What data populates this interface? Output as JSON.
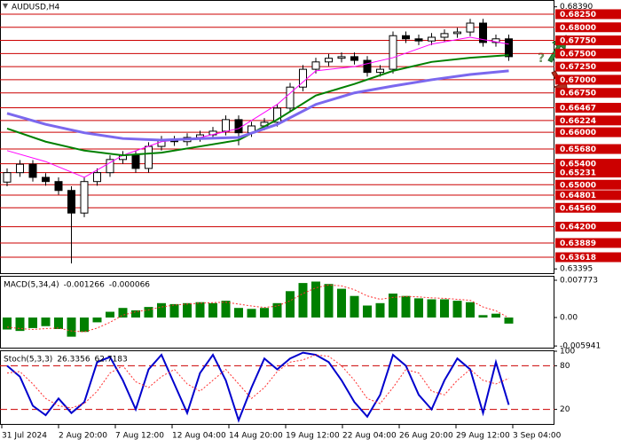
{
  "chart_data": [
    {
      "type": "candlestick",
      "title": "AUDUSD,H4",
      "forecast_symbol": "?",
      "ylim": [
        0.63314,
        0.6852
      ],
      "yticks": [
        {
          "value": 0.6839,
          "label": "0.68390"
        },
        {
          "value": 0.63395,
          "label": "0.63395"
        }
      ],
      "levels": [
        {
          "value": 0.6825,
          "label": "0.68250"
        },
        {
          "value": 0.68,
          "label": "0.68000"
        },
        {
          "value": 0.6775,
          "label": "0.67750"
        },
        {
          "value": 0.675,
          "label": "0.67500"
        },
        {
          "value": 0.6725,
          "label": "0.67250"
        },
        {
          "value": 0.67,
          "label": "0.67000"
        },
        {
          "value": 0.6675,
          "label": "0.66750"
        },
        {
          "value": 0.66467,
          "label": "0.66467"
        },
        {
          "value": 0.66224,
          "label": "0.66224"
        },
        {
          "value": 0.66,
          "label": "0.66000"
        },
        {
          "value": 0.6568,
          "label": "0.65680"
        },
        {
          "value": 0.654,
          "label": "0.65400"
        },
        {
          "value": 0.65231,
          "label": "0.65231"
        },
        {
          "value": 0.65,
          "label": "0.65000"
        },
        {
          "value": 0.64801,
          "label": "0.64801"
        },
        {
          "value": 0.6456,
          "label": "0.64560"
        },
        {
          "value": 0.642,
          "label": "0.64200"
        },
        {
          "value": 0.63889,
          "label": "0.63889"
        },
        {
          "value": 0.63618,
          "label": "0.63618"
        }
      ],
      "level_color": "#cc0000",
      "up_color": "#ffffff",
      "down_color": "#000000",
      "candles": {
        "open": [
          0.6505,
          0.6523,
          0.6539,
          0.6514,
          0.6506,
          0.6489,
          0.6446,
          0.6506,
          0.6523,
          0.6548,
          0.6556,
          0.6531,
          0.6573,
          0.6585,
          0.6582,
          0.659,
          0.6595,
          0.6602,
          0.6624,
          0.6599,
          0.6612,
          0.6619,
          0.6646,
          0.6686,
          0.672,
          0.6734,
          0.6741,
          0.6744,
          0.6737,
          0.6714,
          0.672,
          0.6784,
          0.6778,
          0.6774,
          0.6781,
          0.6788,
          0.6791,
          0.6808,
          0.6771,
          0.6778
        ],
        "high": [
          0.6531,
          0.6547,
          0.6547,
          0.6522,
          0.6514,
          0.6497,
          0.6514,
          0.6531,
          0.6556,
          0.6564,
          0.6564,
          0.6581,
          0.6593,
          0.6593,
          0.6598,
          0.6603,
          0.661,
          0.6632,
          0.6632,
          0.662,
          0.6627,
          0.6654,
          0.6694,
          0.6728,
          0.6742,
          0.6749,
          0.6752,
          0.6752,
          0.6745,
          0.6728,
          0.6792,
          0.6792,
          0.6786,
          0.6789,
          0.6796,
          0.6799,
          0.6816,
          0.6816,
          0.6786,
          0.6786
        ],
        "low": [
          0.6497,
          0.6515,
          0.6506,
          0.6498,
          0.6481,
          0.635,
          0.6438,
          0.6498,
          0.6515,
          0.654,
          0.6523,
          0.6523,
          0.6565,
          0.6574,
          0.6574,
          0.6582,
          0.6587,
          0.6594,
          0.6575,
          0.6591,
          0.6604,
          0.6611,
          0.6638,
          0.6678,
          0.6712,
          0.6726,
          0.6733,
          0.6729,
          0.6706,
          0.6706,
          0.6712,
          0.677,
          0.6766,
          0.6766,
          0.6773,
          0.678,
          0.6783,
          0.6763,
          0.6763,
          0.6736
        ],
        "close": [
          0.6523,
          0.6539,
          0.6514,
          0.6506,
          0.6489,
          0.6446,
          0.6506,
          0.6523,
          0.6548,
          0.6556,
          0.6531,
          0.6573,
          0.6585,
          0.6582,
          0.659,
          0.6595,
          0.6602,
          0.6624,
          0.6599,
          0.6612,
          0.6619,
          0.6646,
          0.6686,
          0.672,
          0.6734,
          0.6741,
          0.6744,
          0.6737,
          0.6714,
          0.672,
          0.6784,
          0.6778,
          0.6774,
          0.6781,
          0.6788,
          0.6791,
          0.6808,
          0.6771,
          0.6778,
          0.6744
        ]
      },
      "moving_averages": [
        {
          "color": "#ff00ff",
          "width": 1,
          "x": [
            0,
            3,
            6,
            9,
            12,
            15,
            18,
            21,
            24,
            27,
            30,
            33,
            36,
            39
          ],
          "values": [
            0.6565,
            0.6544,
            0.6514,
            0.6556,
            0.6582,
            0.659,
            0.6607,
            0.6653,
            0.6717,
            0.6725,
            0.6742,
            0.6768,
            0.6781,
            0.6768
          ]
        },
        {
          "color": "#008000",
          "width": 2,
          "x": [
            0,
            3,
            6,
            9,
            12,
            15,
            18,
            21,
            24,
            27,
            30,
            33,
            36,
            39
          ],
          "values": [
            0.6607,
            0.6582,
            0.6565,
            0.6556,
            0.6561,
            0.6573,
            0.6585,
            0.6624,
            0.667,
            0.6692,
            0.6717,
            0.6734,
            0.6742,
            0.6747
          ]
        },
        {
          "color": "#7b68ee",
          "width": 3,
          "x": [
            0,
            3,
            6,
            9,
            12,
            15,
            18,
            21,
            24,
            27,
            30,
            33,
            36,
            39
          ],
          "values": [
            0.6636,
            0.6615,
            0.6599,
            0.6588,
            0.6585,
            0.6588,
            0.659,
            0.6615,
            0.6653,
            0.6675,
            0.6688,
            0.67,
            0.671,
            0.6717
          ]
        }
      ]
    },
    {
      "type": "macd",
      "title": "MACD(5,34,4)",
      "color": "#008000",
      "signal_color": "#ff3030",
      "ylim": [
        -0.00629,
        0.00833
      ],
      "yticks": [
        0.007773,
        {
          "value": 0,
          "label": "0.00"
        },
        -0.005941
      ],
      "values": [
        -0.0025,
        -0.0028,
        -0.0022,
        -0.0018,
        -0.0024,
        -0.004,
        -0.003,
        -0.001,
        0.0012,
        0.002,
        0.0015,
        0.0022,
        0.003,
        0.0028,
        0.003,
        0.0032,
        0.003,
        0.0035,
        0.002,
        0.0018,
        0.002,
        0.003,
        0.0055,
        0.0072,
        0.0075,
        0.007,
        0.006,
        0.0045,
        0.0025,
        0.003,
        0.005,
        0.0045,
        0.004,
        0.0038,
        0.0038,
        0.0035,
        0.0032,
        0.0005,
        0.0008,
        -0.001266
      ],
      "signal": [
        -0.002,
        -0.0023,
        -0.0025,
        -0.0023,
        -0.0022,
        -0.0028,
        -0.003,
        -0.0022,
        -0.001,
        0.0005,
        0.0012,
        0.0016,
        0.0022,
        0.0026,
        0.0028,
        0.003,
        0.0031,
        0.0032,
        0.0028,
        0.0024,
        0.0021,
        0.0024,
        0.0035,
        0.005,
        0.0062,
        0.0068,
        0.0066,
        0.0058,
        0.0045,
        0.0038,
        0.0042,
        0.0044,
        0.0043,
        0.0041,
        0.004,
        0.0038,
        0.0036,
        0.0022,
        0.0014,
        -6.6e-05
      ]
    },
    {
      "type": "line",
      "title": "Stoch(5,3,3)",
      "ylim": [
        0,
        100
      ],
      "yticks": [
        100,
        80,
        20
      ],
      "levels": [
        80,
        20
      ],
      "level_color": "#cc0000",
      "series": [
        {
          "color": "#0000cd",
          "style": "solid",
          "values": [
            80,
            65,
            25,
            12,
            35,
            15,
            30,
            85,
            92,
            60,
            20,
            75,
            95,
            55,
            15,
            70,
            95,
            60,
            5,
            50,
            90,
            75,
            90,
            98,
            95,
            85,
            60,
            30,
            10,
            40,
            95,
            80,
            40,
            20,
            60,
            90,
            75,
            15,
            85,
            26.3356
          ]
        },
        {
          "color": "#ff3030",
          "style": "dotted",
          "values": [
            70,
            72,
            55,
            35,
            25,
            22,
            28,
            45,
            70,
            80,
            58,
            50,
            65,
            75,
            55,
            45,
            60,
            75,
            55,
            35,
            50,
            72,
            85,
            88,
            95,
            93,
            80,
            60,
            35,
            28,
            50,
            75,
            70,
            45,
            40,
            60,
            75,
            60,
            55,
            62.7183
          ]
        }
      ],
      "time_labels": [
        "31 Jul 2024",
        "2 Aug 20:00",
        "7 Aug 12:00",
        "12 Aug 04:00",
        "14 Aug 20:00",
        "19 Aug 12:00",
        "22 Aug 04:00",
        "26 Aug 20:00",
        "29 Aug 12:00",
        "3 Sep 04:00"
      ]
    }
  ]
}
